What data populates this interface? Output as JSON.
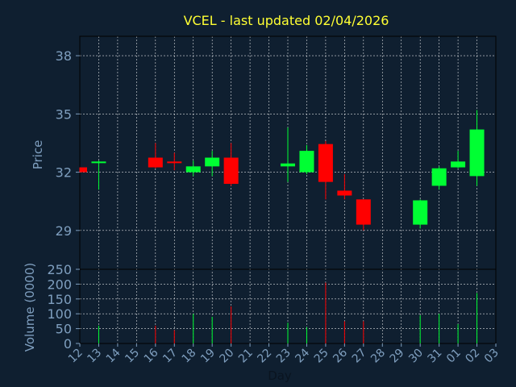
{
  "chart_data": {
    "type": "candlestick",
    "title": "VCEL - last updated 02/04/2026",
    "ylabel_price": "Price",
    "ylabel_volume": "Volume (0000)",
    "xlabel": "Day",
    "price_ylim": [
      27,
      39
    ],
    "price_ticks": [
      29,
      32,
      35,
      38
    ],
    "volume_ylim": [
      0,
      250
    ],
    "volume_ticks": [
      0,
      50,
      100,
      150,
      200,
      250
    ],
    "x_labels": [
      "12",
      "13",
      "14",
      "15",
      "16",
      "17",
      "18",
      "19",
      "20",
      "21",
      "22",
      "23",
      "24",
      "25",
      "26",
      "27",
      "28",
      "29",
      "30",
      "31",
      "01",
      "02",
      "03"
    ],
    "colors": {
      "up": "#00ff33",
      "down": "#ff0000",
      "background": "#0f1f30",
      "grid": "#ffffff",
      "axis_text": "#7f9fbf",
      "title": "#ffff33"
    },
    "candles": [
      {
        "day": "12",
        "open": 32.25,
        "high": 32.25,
        "low": 32.0,
        "close": 32.0,
        "volume": 0
      },
      {
        "day": "13",
        "open": 32.5,
        "high": 32.6,
        "low": 31.1,
        "close": 32.55,
        "volume": 60
      },
      {
        "day": "16",
        "open": 32.75,
        "high": 33.5,
        "low": 32.2,
        "close": 32.25,
        "volume": 60
      },
      {
        "day": "17",
        "open": 32.55,
        "high": 33.0,
        "low": 32.1,
        "close": 32.5,
        "volume": 45
      },
      {
        "day": "18",
        "open": 32.0,
        "high": 32.6,
        "low": 31.8,
        "close": 32.3,
        "volume": 100
      },
      {
        "day": "19",
        "open": 32.3,
        "high": 33.1,
        "low": 31.8,
        "close": 32.75,
        "volume": 90
      },
      {
        "day": "20",
        "open": 32.75,
        "high": 33.5,
        "low": 31.3,
        "close": 31.4,
        "volume": 125
      },
      {
        "day": "23",
        "open": 32.3,
        "high": 34.3,
        "low": 31.5,
        "close": 32.45,
        "volume": 70
      },
      {
        "day": "24",
        "open": 32.0,
        "high": 33.4,
        "low": 31.9,
        "close": 33.1,
        "volume": 55
      },
      {
        "day": "25",
        "open": 33.45,
        "high": 33.6,
        "low": 30.6,
        "close": 31.5,
        "volume": 205
      },
      {
        "day": "26",
        "open": 31.05,
        "high": 31.9,
        "low": 30.6,
        "close": 30.8,
        "volume": 75
      },
      {
        "day": "27",
        "open": 30.6,
        "high": 30.6,
        "low": 29.0,
        "close": 29.3,
        "volume": 75
      },
      {
        "day": "30",
        "open": 29.3,
        "high": 30.6,
        "low": 29.1,
        "close": 30.55,
        "volume": 95
      },
      {
        "day": "31",
        "open": 31.3,
        "high": 32.3,
        "low": 31.1,
        "close": 32.2,
        "volume": 100
      },
      {
        "day": "01",
        "open": 32.25,
        "high": 33.1,
        "low": 32.2,
        "close": 32.55,
        "volume": 65
      },
      {
        "day": "02",
        "open": 31.8,
        "high": 35.2,
        "low": 31.3,
        "close": 34.2,
        "volume": 170
      }
    ]
  }
}
